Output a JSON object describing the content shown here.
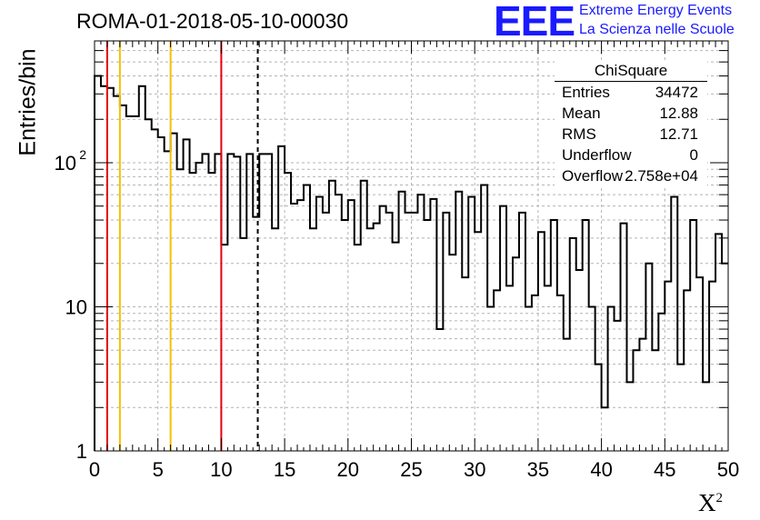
{
  "header": {
    "title": "ROMA-01-2018-05-10-00030"
  },
  "logo": {
    "mark": "EEE",
    "line1": "Extreme Energy Events",
    "line2": "La Scienza nelle Scuole"
  },
  "stats_box": {
    "name": "ChiSquare",
    "rows": [
      {
        "key": "Entries",
        "value": "34472"
      },
      {
        "key": "Mean",
        "value": "12.88"
      },
      {
        "key": "RMS",
        "value": "12.71"
      },
      {
        "key": "Underflow",
        "value": "0"
      },
      {
        "key": "Overflow",
        "value": "2.758e+04"
      }
    ]
  },
  "chart_data": {
    "type": "histogram",
    "title": "ROMA-01-2018-05-10-00030",
    "xlabel": "X",
    "xlabel_superscript": "2",
    "ylabel": "Entries/bin",
    "xlim": [
      0,
      50
    ],
    "ylim": [
      1,
      700
    ],
    "y_scale": "log",
    "grid": true,
    "x_ticks": [
      "0",
      "5",
      "10",
      "15",
      "20",
      "25",
      "30",
      "35",
      "40",
      "45",
      "50"
    ],
    "y_ticks": [
      {
        "value": 1,
        "label": "1"
      },
      {
        "value": 10,
        "label": "10"
      },
      {
        "value": 100,
        "label": "10",
        "exponent": "2"
      }
    ],
    "bin_width": 0.5,
    "bin_start": 0,
    "values": [
      400,
      340,
      330,
      290,
      250,
      210,
      210,
      340,
      200,
      170,
      150,
      120,
      160,
      90,
      145,
      85,
      100,
      115,
      85,
      115,
      27,
      115,
      110,
      30,
      115,
      42,
      115,
      115,
      35,
      130,
      85,
      52,
      55,
      70,
      35,
      58,
      45,
      75,
      60,
      40,
      55,
      27,
      75,
      35,
      38,
      50,
      45,
      28,
      63,
      45,
      45,
      60,
      40,
      56,
      7,
      45,
      23,
      63,
      16,
      58,
      33,
      70,
      10,
      13,
      50,
      14,
      22,
      45,
      10,
      12,
      33,
      14,
      40,
      12,
      6,
      30,
      18,
      40,
      10,
      4,
      2,
      10,
      8,
      38,
      3,
      5,
      6,
      20,
      5,
      9,
      15,
      58,
      4,
      13,
      40,
      16,
      3,
      15,
      32,
      20
    ],
    "vertical_lines": [
      {
        "x": 1,
        "color": "#e8000b",
        "style": "solid"
      },
      {
        "x": 2,
        "color": "#f5c000",
        "style": "solid"
      },
      {
        "x": 6,
        "color": "#f5c000",
        "style": "solid"
      },
      {
        "x": 10,
        "color": "#e8000b",
        "style": "solid"
      },
      {
        "x": 12.88,
        "color": "#000000",
        "style": "dashed"
      }
    ]
  }
}
